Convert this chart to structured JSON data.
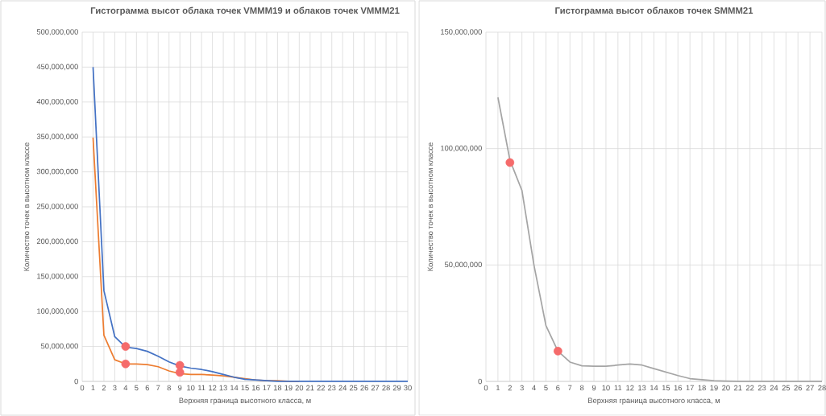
{
  "chart_data": [
    {
      "type": "line",
      "title": "Гистограмма высот облака точек VMMM19 и облаков точек VMMM21",
      "xlabel": "Верхняя граница высотного класса, м",
      "ylabel": "Количество точек в высотном классе",
      "grid": true,
      "xlim": [
        0,
        30
      ],
      "xticks": [
        0,
        1,
        2,
        3,
        4,
        5,
        6,
        7,
        8,
        9,
        10,
        11,
        12,
        13,
        14,
        15,
        16,
        17,
        18,
        19,
        20,
        21,
        22,
        23,
        24,
        25,
        26,
        27,
        28,
        29,
        30
      ],
      "ylim": [
        0,
        500000000
      ],
      "yticks": [
        {
          "value": 0,
          "label": "0"
        },
        {
          "value": 50000000,
          "label": "50,000,000"
        },
        {
          "value": 100000000,
          "label": "100,000,000"
        },
        {
          "value": 150000000,
          "label": "150,000,000"
        },
        {
          "value": 200000000,
          "label": "200,000,000"
        },
        {
          "value": 250000000,
          "label": "250,000,000"
        },
        {
          "value": 300000000,
          "label": "300,000,000"
        },
        {
          "value": 350000000,
          "label": "350,000,000"
        },
        {
          "value": 400000000,
          "label": "400,000,000"
        },
        {
          "value": 450000000,
          "label": "450,000,000"
        },
        {
          "value": 500000000,
          "label": "500,000,000"
        }
      ],
      "series": [
        {
          "color": "#ed7d31",
          "marker": "none",
          "x": [
            1,
            2,
            3,
            4,
            5,
            6,
            7,
            8,
            9,
            10,
            11,
            12,
            13,
            14,
            15,
            16,
            17,
            18,
            19,
            20
          ],
          "values": [
            349000000,
            66000000,
            31000000,
            25000000,
            25000000,
            24000000,
            21000000,
            15000000,
            11000000,
            10000000,
            10000000,
            9000000,
            8000000,
            6000000,
            4000000,
            2000000,
            1000000,
            1000000,
            0,
            0
          ]
        },
        {
          "color": "#4472c4",
          "marker": "none",
          "x": [
            1,
            2,
            3,
            4,
            5,
            6,
            7,
            8,
            9,
            10,
            11,
            12,
            13,
            14,
            15,
            16,
            17,
            18,
            19,
            20,
            21,
            22,
            23,
            24,
            25,
            26,
            27,
            28,
            29,
            30
          ],
          "values": [
            450000000,
            130000000,
            64000000,
            49000000,
            47000000,
            43000000,
            36000000,
            28000000,
            22000000,
            19000000,
            17000000,
            14000000,
            10000000,
            6000000,
            3000000,
            2000000,
            1000000,
            0,
            0,
            0,
            0,
            0,
            0,
            0,
            0,
            0,
            0,
            0,
            0,
            0
          ]
        },
        {
          "type": "scatter",
          "color": "#f56b6b",
          "marker": "circle",
          "x": [
            4,
            4,
            9,
            9
          ],
          "values": [
            50000000,
            25000000,
            23000000,
            13000000
          ]
        }
      ]
    },
    {
      "type": "line",
      "title": "Гистограмма высот облаков точек SMMM21",
      "xlabel": "Верхняя граница высотного класса, м",
      "ylabel": "Количество точек в высотном классе",
      "grid": true,
      "xlim": [
        0,
        28
      ],
      "xticks": [
        0,
        1,
        2,
        3,
        4,
        5,
        6,
        7,
        8,
        9,
        10,
        11,
        12,
        13,
        14,
        15,
        16,
        17,
        18,
        19,
        20,
        21,
        22,
        23,
        24,
        25,
        26,
        27,
        28
      ],
      "ylim": [
        0,
        150000000
      ],
      "yticks": [
        {
          "value": 0,
          "label": "0"
        },
        {
          "value": 50000000,
          "label": "50,000,000"
        },
        {
          "value": 100000000,
          "label": "100,000,000"
        },
        {
          "value": 150000000,
          "label": "150,000,000"
        }
      ],
      "series": [
        {
          "color": "#a5a5a5",
          "marker": "none",
          "x": [
            1,
            2,
            3,
            4,
            5,
            6,
            7,
            8,
            9,
            10,
            11,
            12,
            13,
            14,
            15,
            16,
            17,
            18,
            19,
            20,
            21,
            22,
            23,
            24,
            25,
            26,
            27,
            28
          ],
          "values": [
            122000000,
            95000000,
            82000000,
            50000000,
            24000000,
            13000000,
            8300000,
            6700000,
            6500000,
            6500000,
            7000000,
            7500000,
            7000000,
            5500000,
            4000000,
            2500000,
            1200000,
            700000,
            300000,
            100000,
            0,
            0,
            0,
            0,
            0,
            0,
            0,
            0
          ]
        },
        {
          "type": "scatter",
          "color": "#f56b6b",
          "marker": "circle",
          "x": [
            2,
            6
          ],
          "values": [
            94000000,
            13000000
          ]
        }
      ]
    }
  ]
}
